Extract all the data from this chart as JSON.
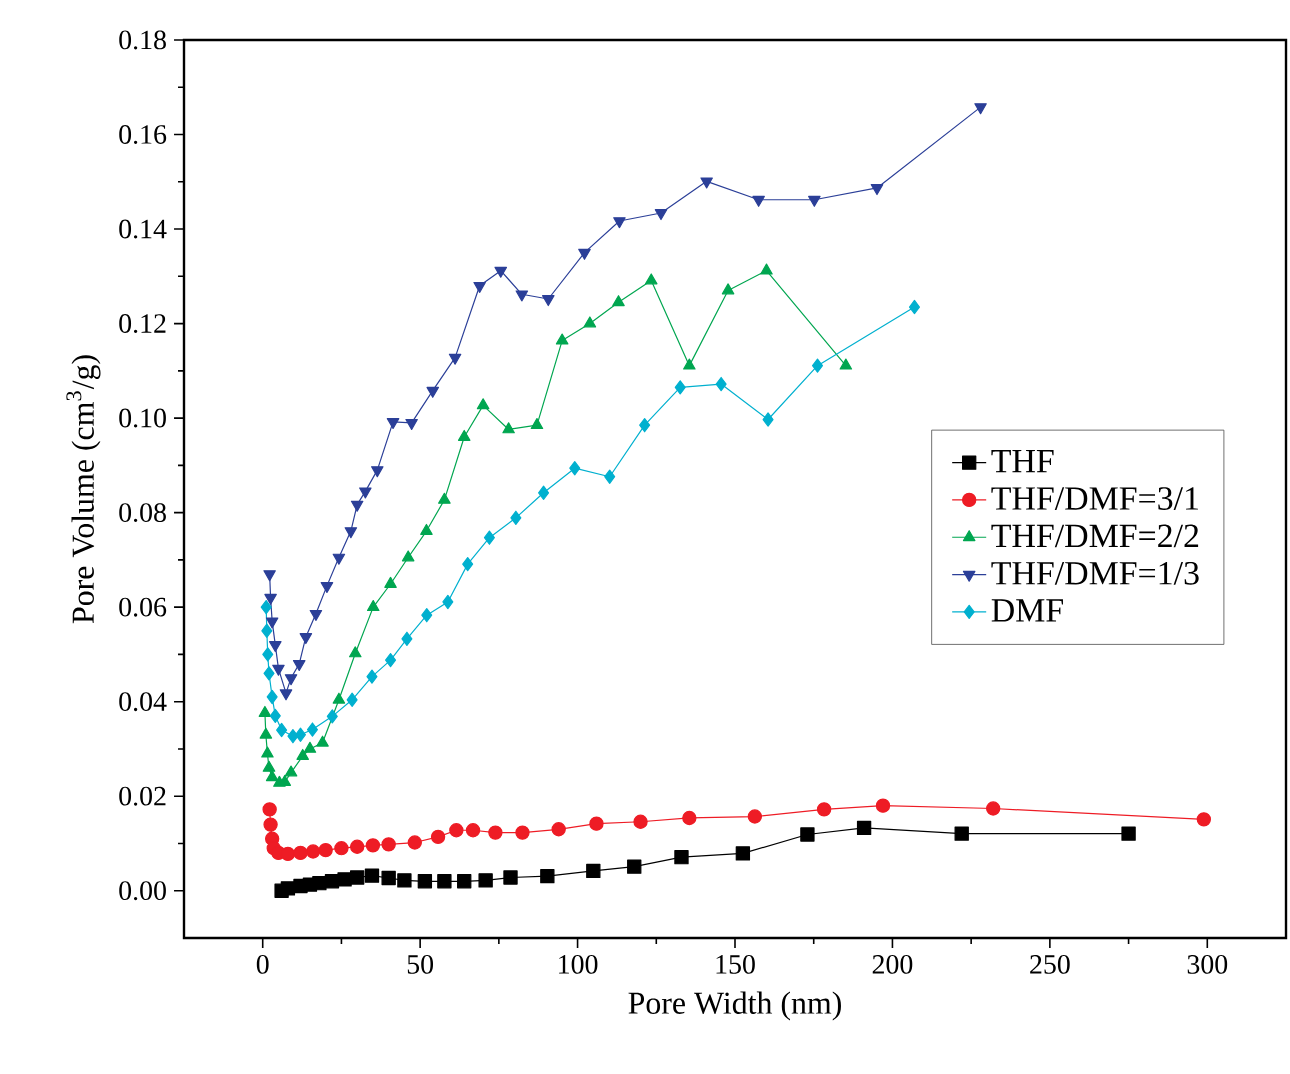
{
  "chart_data": {
    "type": "line",
    "xlabel": "Pore Width (nm)",
    "ylabel": "Pore Volume (cm$^{3}$/g)",
    "xlim": [
      -25,
      325
    ],
    "ylim": [
      -0.01,
      0.18
    ],
    "xticks": [
      0,
      50,
      100,
      150,
      200,
      250,
      300
    ],
    "yticks": [
      {
        "value": 0,
        "label": "0.00"
      },
      {
        "value": 0.02,
        "label": "0.02"
      },
      {
        "value": 0.04,
        "label": "0.04"
      },
      {
        "value": 0.06,
        "label": "0.06"
      },
      {
        "value": 0.08,
        "label": "0.08"
      },
      {
        "value": 0.1,
        "label": "0.10"
      },
      {
        "value": 0.12,
        "label": "0.12"
      },
      {
        "value": 0.14,
        "label": "0.14"
      },
      {
        "value": 0.16,
        "label": "0.16"
      },
      {
        "value": 0.18,
        "label": "0.18"
      }
    ],
    "legend": "right",
    "grid": false,
    "line_style": "solid",
    "series": [
      {
        "name": "THF",
        "color": "#000000",
        "marker": "square",
        "x": [
          6,
          8,
          10,
          12,
          15,
          18,
          22,
          26,
          30,
          34.7,
          40,
          45,
          51.5,
          57.7,
          64,
          70.8,
          78.7,
          90.4,
          105,
          118,
          133,
          152.5,
          173,
          191,
          222,
          275
        ],
        "values": [
          0.0,
          0.0005,
          null,
          0.001,
          0.0013,
          0.0016,
          0.002,
          0.0024,
          0.0028,
          0.0032,
          0.0027,
          0.0022,
          0.002,
          0.002,
          0.002,
          0.0022,
          0.0028,
          0.0031,
          0.0042,
          0.0051,
          0.0071,
          0.0079,
          0.0119,
          0.0133,
          0.0121,
          0.0121
        ]
      },
      {
        "name": "THF/DMF=3/1",
        "color": "#ee1c25",
        "marker": "circle",
        "x": [
          2.2,
          2.5,
          3,
          3.5,
          5,
          8,
          12,
          16,
          20,
          25,
          30,
          35,
          40,
          48.3,
          55.7,
          61.5,
          66.8,
          73.9,
          82.5,
          94,
          106,
          120,
          135.5,
          156.3,
          178.3,
          197,
          232,
          298.9
        ],
        "values": [
          0.0172,
          0.014,
          0.011,
          0.009,
          0.008,
          0.0078,
          0.008,
          0.0083,
          0.0086,
          0.009,
          0.0093,
          0.0096,
          0.0098,
          0.0102,
          0.0114,
          0.0128,
          0.0128,
          0.0123,
          0.0123,
          0.013,
          0.0142,
          0.0146,
          0.0154,
          0.0157,
          0.0172,
          0.018,
          0.0174,
          0.0151
        ]
      },
      {
        "name": "THF/DMF=2/2",
        "color": "#00a650",
        "marker": "triangle",
        "x": [
          0.7,
          1,
          1.5,
          2,
          3,
          5.3,
          7,
          9,
          12.7,
          15,
          19,
          24.2,
          29.4,
          35.1,
          40.6,
          46.2,
          52,
          57.7,
          64,
          70,
          78.1,
          87.1,
          95.1,
          103.9,
          113,
          123.4,
          135.5,
          147.8,
          160,
          185.2
        ],
        "values": [
          0.0376,
          0.033,
          0.029,
          0.026,
          0.024,
          0.0228,
          0.023,
          0.025,
          0.0285,
          0.03,
          0.0313,
          0.0404,
          0.0502,
          0.06,
          0.0649,
          0.0705,
          0.0761,
          0.0827,
          0.096,
          0.1027,
          0.0976,
          0.0985,
          0.1164,
          0.12,
          0.1245,
          0.1291,
          0.1111,
          0.127,
          0.1312,
          0.1111
        ]
      },
      {
        "name": "THF/DMF=1/3",
        "color": "#2b3f98",
        "marker": "triangle-down",
        "x": [
          2.2,
          2.5,
          3,
          4,
          5,
          7.4,
          9,
          11.6,
          13.7,
          16.9,
          20.4,
          24.2,
          28,
          30,
          32.6,
          36.4,
          41.4,
          47.3,
          54,
          61.1,
          68.9,
          75.6,
          82.3,
          90.7,
          102.2,
          113.3,
          126.5,
          141,
          157.5,
          175.2,
          195.1,
          228
        ],
        "values": [
          0.067,
          0.062,
          0.057,
          0.052,
          0.047,
          0.0418,
          0.045,
          0.048,
          0.0537,
          0.0586,
          0.0645,
          0.0705,
          0.0761,
          0.0817,
          0.0845,
          0.089,
          0.0992,
          0.099,
          0.1058,
          0.1128,
          0.128,
          0.1312,
          0.1262,
          0.1252,
          0.135,
          0.1417,
          0.1434,
          0.1501,
          0.1462,
          0.1462,
          0.1487,
          0.1658
        ]
      },
      {
        "name": "DMF",
        "color": "#00b0cf",
        "marker": "diamond",
        "x": [
          1.1,
          1.3,
          1.6,
          2,
          3,
          4,
          6,
          9.6,
          12,
          15.8,
          22.1,
          28.4,
          34.7,
          40.6,
          45.8,
          52.1,
          58.8,
          65.1,
          72,
          80.4,
          89.2,
          99.1,
          110.2,
          121.3,
          132.6,
          145.6,
          160.5,
          176.2,
          207
        ],
        "values": [
          0.06,
          0.055,
          0.05,
          0.046,
          0.041,
          0.037,
          0.034,
          0.0327,
          0.033,
          0.0341,
          0.0369,
          0.0404,
          0.0453,
          0.0488,
          0.0533,
          0.0583,
          0.0611,
          0.0691,
          0.0747,
          0.0789,
          0.0842,
          0.0894,
          0.0876,
          0.0985,
          0.1065,
          0.1072,
          0.0997,
          0.1111,
          0.1235
        ]
      }
    ]
  }
}
